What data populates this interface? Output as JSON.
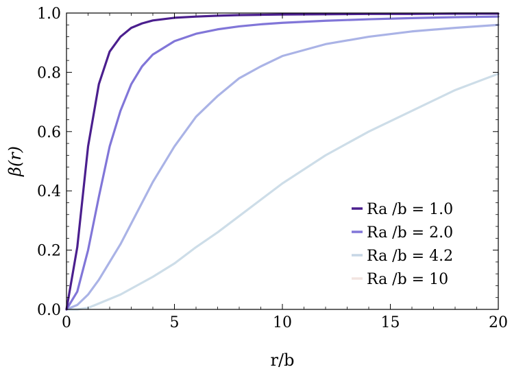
{
  "chart_data": {
    "type": "line",
    "title": "",
    "xlabel": "r/b",
    "ylabel": "β(r)",
    "xlim": [
      0,
      20
    ],
    "ylim": [
      0,
      1
    ],
    "x_ticks": [
      "0",
      "5",
      "10",
      "15",
      "20"
    ],
    "y_ticks": [
      "0.0",
      "0.2",
      "0.4",
      "0.6",
      "0.8",
      "1.0"
    ],
    "grid": false,
    "legend_position": "bottom-right",
    "x": [
      0,
      0.5,
      1,
      1.5,
      2,
      2.5,
      3,
      3.5,
      4,
      5,
      6,
      7,
      8,
      9,
      10,
      12,
      14,
      16,
      18,
      20
    ],
    "series": [
      {
        "name": "Ra /b = 1.0",
        "color": "#4b1f8e",
        "values": [
          0.0,
          0.21,
          0.55,
          0.76,
          0.87,
          0.92,
          0.95,
          0.965,
          0.975,
          0.984,
          0.988,
          0.991,
          0.993,
          0.994,
          0.995,
          0.996,
          0.997,
          0.997,
          0.998,
          0.998
        ]
      },
      {
        "name": "Ra /b = 2.0",
        "color": "#8176d8",
        "values": [
          0.0,
          0.06,
          0.2,
          0.38,
          0.55,
          0.67,
          0.76,
          0.82,
          0.86,
          0.905,
          0.93,
          0.945,
          0.955,
          0.962,
          0.967,
          0.974,
          0.979,
          0.983,
          0.986,
          0.988
        ]
      },
      {
        "name": "Ra /b = 4.2",
        "color": "#aab3e6",
        "values": [
          0.0,
          0.015,
          0.05,
          0.1,
          0.16,
          0.22,
          0.29,
          0.36,
          0.43,
          0.55,
          0.65,
          0.72,
          0.78,
          0.82,
          0.855,
          0.895,
          0.92,
          0.938,
          0.95,
          0.96
        ]
      },
      {
        "name": "Ra /b = 10",
        "color": "#f2e4e0",
        "values": [
          null,
          null,
          null,
          null,
          null,
          null,
          null,
          null,
          null,
          null,
          null,
          null,
          null,
          null,
          null,
          null,
          null,
          null,
          null,
          null
        ]
      },
      {
        "name": "",
        "color": "#cddde8",
        "values": [
          0.0,
          0.0,
          0.005,
          0.02,
          0.035,
          0.05,
          0.07,
          0.09,
          0.11,
          0.155,
          0.21,
          0.26,
          0.315,
          0.37,
          0.425,
          0.52,
          0.6,
          0.67,
          0.74,
          0.795
        ]
      }
    ],
    "legend": [
      {
        "name": "Ra /b = 1.0",
        "color": "#4b1f8e"
      },
      {
        "name": "Ra /b = 2.0",
        "color": "#8176d8"
      },
      {
        "name": "Ra /b = 4.2",
        "color": "#c7d7e6"
      },
      {
        "name": "Ra /b = 10",
        "color": "#f2e4e0"
      }
    ]
  }
}
